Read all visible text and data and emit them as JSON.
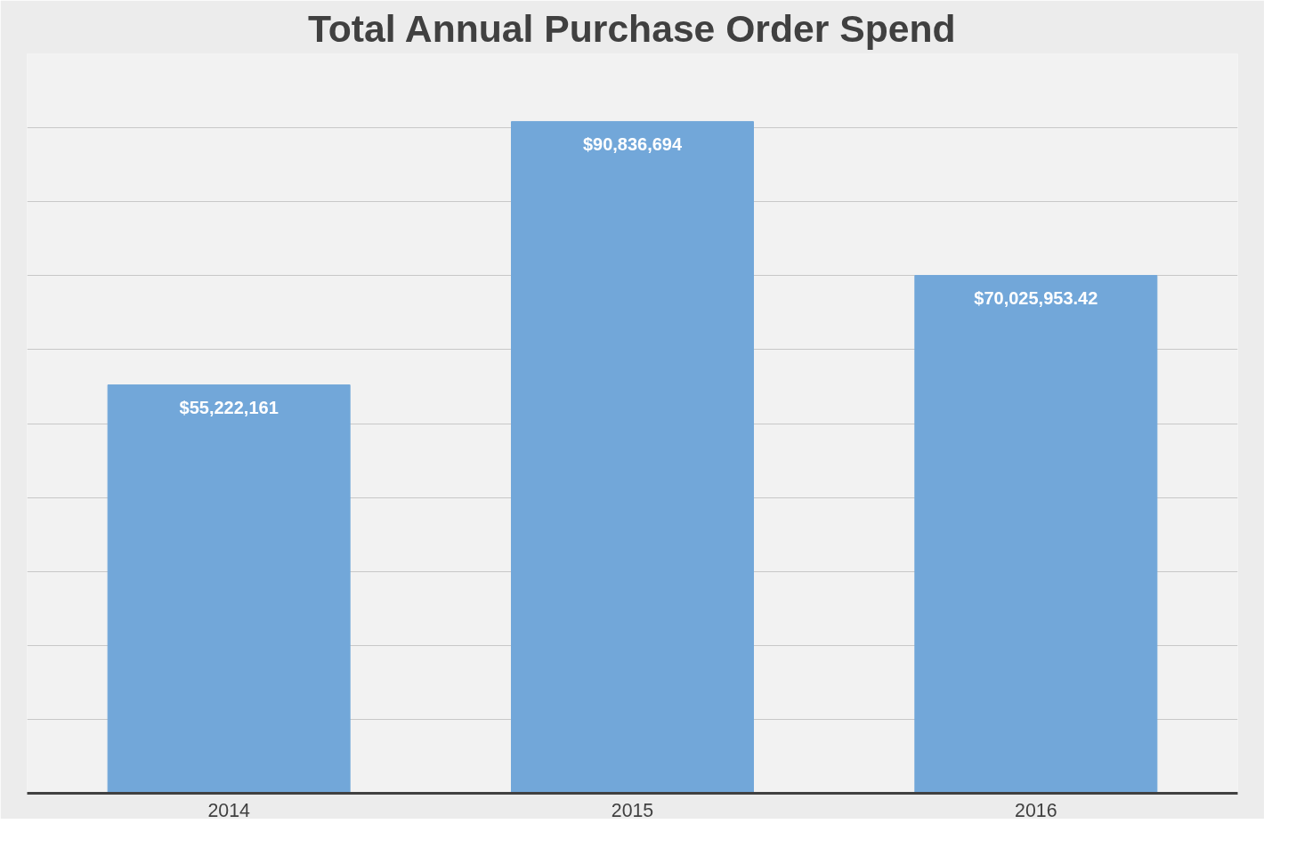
{
  "chart_data": {
    "type": "bar",
    "title": "Total Annual Purchase Order Spend",
    "categories": [
      "2014",
      "2015",
      "2016"
    ],
    "values": [
      55222161,
      90836694,
      70025953.42
    ],
    "value_labels": [
      "$55,222,161",
      "$90,836,694",
      "$70,025,953.42"
    ],
    "color": "#72a7d9",
    "ylim": [
      0,
      100000000
    ],
    "yticks": [
      {
        "value": 0,
        "label": null
      },
      {
        "value": 10000000,
        "label": null
      },
      {
        "value": 20000000,
        "label": null
      },
      {
        "value": 30000000,
        "label": null
      },
      {
        "value": 40000000,
        "label": null
      },
      {
        "value": 50000000,
        "label": null
      },
      {
        "value": 60000000,
        "label": null
      },
      {
        "value": 70000000,
        "label": null
      },
      {
        "value": 80000000,
        "label": null
      },
      {
        "value": 90000000,
        "label": null
      },
      {
        "value": 100000000,
        "label": null
      }
    ],
    "grid": "y",
    "tick_labels": "x"
  }
}
